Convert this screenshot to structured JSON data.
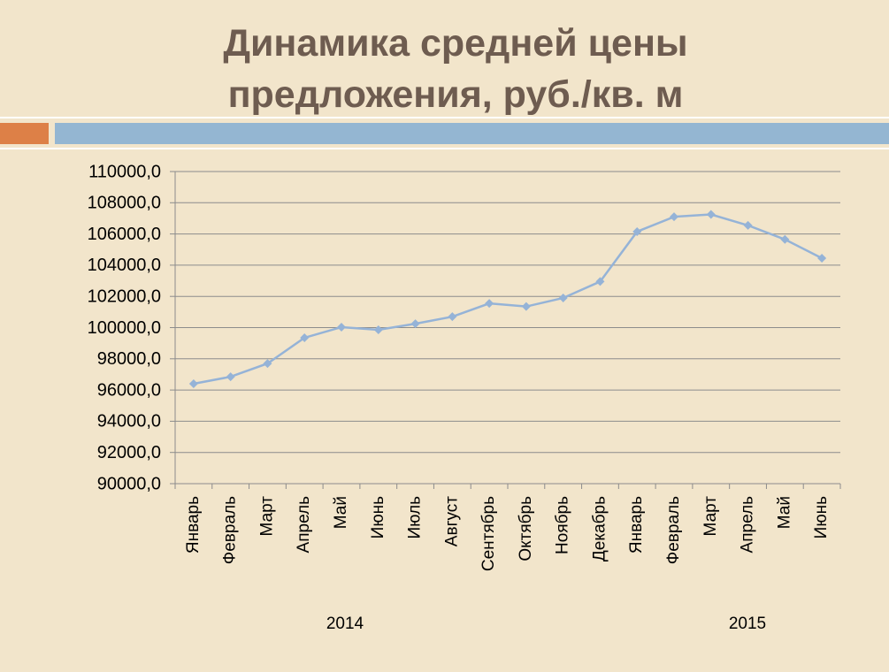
{
  "chart_data": {
    "type": "line",
    "title": "Динамика средней цены предложения, руб./кв. м",
    "categories": [
      "Январь",
      "Февраль",
      "Март",
      "Апрель",
      "Май",
      "Июнь",
      "Июль",
      "Август",
      "Сентябрь",
      "Октябрь",
      "Ноябрь",
      "Декабрь",
      "Январь",
      "Февраль",
      "Март",
      "Апрель",
      "Май",
      "Июнь"
    ],
    "year_labels": [
      "2014",
      "2015"
    ],
    "series": [
      {
        "color": "#95b3d7",
        "values": [
          96400,
          96850,
          97700,
          99350,
          100030,
          99860,
          100250,
          100700,
          101550,
          101350,
          101900,
          102950,
          106150,
          107100,
          107250,
          106550,
          105650,
          104450
        ]
      }
    ],
    "ylim": [
      90000,
      110000
    ],
    "yticks": [
      {
        "value": 90000,
        "label": "90000,0"
      },
      {
        "value": 92000,
        "label": "92000,0"
      },
      {
        "value": 94000,
        "label": "94000,0"
      },
      {
        "value": 96000,
        "label": "96000,0"
      },
      {
        "value": 98000,
        "label": "98000,0"
      },
      {
        "value": 100000,
        "label": "100000,0"
      },
      {
        "value": 102000,
        "label": "102000,0"
      },
      {
        "value": 104000,
        "label": "104000,0"
      },
      {
        "value": 106000,
        "label": "106000,0"
      },
      {
        "value": 108000,
        "label": "108000,0"
      },
      {
        "value": 110000,
        "label": "110000,0"
      }
    ],
    "grid": true
  }
}
